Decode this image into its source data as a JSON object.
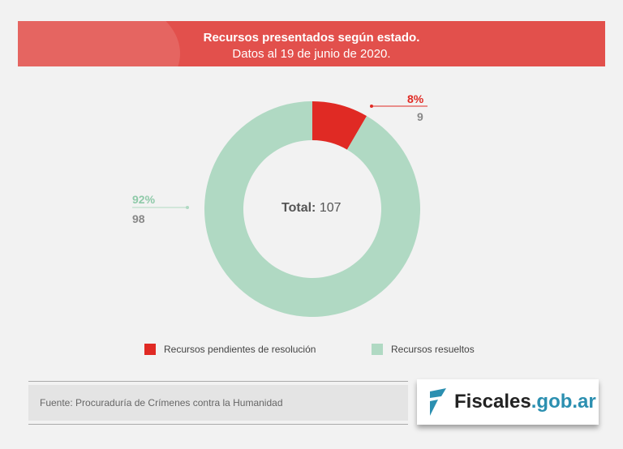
{
  "header": {
    "title": "Recursos presentados según estado.",
    "subtitle": "Datos al 19 de junio de 2020."
  },
  "chart_data": {
    "type": "pie",
    "donut": true,
    "title": "Recursos presentados según estado.",
    "subtitle": "Datos al 19 de junio de 2020.",
    "center_label": {
      "prefix": "Total:",
      "value": "107"
    },
    "slices": [
      {
        "name": "Recursos pendientes de resolución",
        "value": 9,
        "percent": "8%",
        "count_label": "9",
        "color": "#e02a24"
      },
      {
        "name": "Recursos resueltos",
        "value": 98,
        "percent": "92%",
        "count_label": "98",
        "color": "#b0d9c3"
      }
    ],
    "legend_position": "bottom"
  },
  "footer": {
    "source": "Fuente: Procuraduría de Crímenes contra la Humanidad",
    "logo_main": "Fiscales",
    "logo_suffix": ".gob.ar"
  }
}
